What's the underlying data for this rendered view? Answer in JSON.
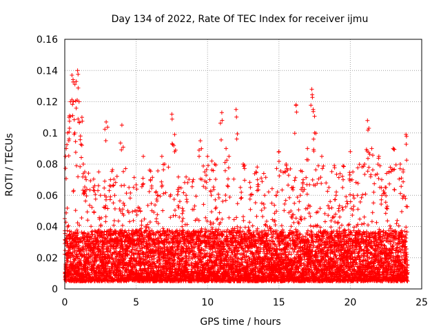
{
  "chart_data": {
    "type": "scatter",
    "title": "Day 134 of 2022, Rate Of TEC Index for receiver ijmu",
    "xlabel": "GPS time / hours",
    "ylabel": "ROTI / TECUs",
    "xlim": [
      0,
      25
    ],
    "ylim": [
      0,
      0.16
    ],
    "xticks": [
      "0",
      "5",
      "10",
      "15",
      "20",
      "25"
    ],
    "yticks": [
      "0",
      "0.02",
      "0.04",
      "0.06",
      "0.08",
      "0.1",
      "0.12",
      "0.14",
      "0.16"
    ],
    "grid": true,
    "marker": "plus",
    "series": [
      {
        "color": "#ff0000",
        "x": [
          0.1,
          0.2,
          0.3,
          0.5,
          0.6,
          0.8,
          0.9,
          1.0,
          1.2,
          1.3,
          1.5,
          2.0,
          2.5,
          2.9,
          3.2,
          4.0,
          4.5,
          5.0,
          5.5,
          6.0,
          6.5,
          7.0,
          7.5,
          8.0,
          8.5,
          9.0,
          9.5,
          10.0,
          10.5,
          11.0,
          11.5,
          12.0,
          12.5,
          13.0,
          13.5,
          14.0,
          14.5,
          15.0,
          15.5,
          16.0,
          16.5,
          17.0,
          17.3,
          17.5,
          18.0,
          18.5,
          19.0,
          19.5,
          20.0,
          20.5,
          21.0,
          21.3,
          21.5,
          22.0,
          22.5,
          23.0,
          23.5,
          23.9,
          0.4,
          0.7,
          1.1,
          1.4,
          3.5,
          6.8,
          7.7,
          9.8,
          10.3,
          11.3,
          16.2,
          17.4,
          21.2,
          22.8,
          23.7,
          2.8,
          4.1,
          8.3,
          12.3,
          14.8,
          16.7,
          19.2,
          20.2,
          22.2,
          5.3,
          13.8,
          18.7
        ],
        "y": [
          0.09,
          0.1,
          0.11,
          0.137,
          0.12,
          0.133,
          0.14,
          0.12,
          0.11,
          0.08,
          0.07,
          0.065,
          0.06,
          0.107,
          0.07,
          0.105,
          0.065,
          0.05,
          0.085,
          0.07,
          0.06,
          0.08,
          0.112,
          0.065,
          0.06,
          0.07,
          0.095,
          0.085,
          0.08,
          0.113,
          0.085,
          0.115,
          0.08,
          0.065,
          0.07,
          0.06,
          0.055,
          0.088,
          0.08,
          0.065,
          0.06,
          0.09,
          0.128,
          0.1,
          0.085,
          0.065,
          0.06,
          0.07,
          0.088,
          0.06,
          0.08,
          0.103,
          0.09,
          0.085,
          0.065,
          0.09,
          0.08,
          0.099,
          0.12,
          0.1,
          0.098,
          0.075,
          0.06,
          0.085,
          0.099,
          0.075,
          0.082,
          0.09,
          0.118,
          0.115,
          0.108,
          0.078,
          0.075,
          0.06,
          0.055,
          0.05,
          0.065,
          0.06,
          0.07,
          0.05,
          0.06,
          0.07,
          0.05,
          0.055,
          0.052
        ],
        "dense_band": [
          0.005,
          0.03
        ],
        "x_density_step": 0.02
      }
    ]
  }
}
